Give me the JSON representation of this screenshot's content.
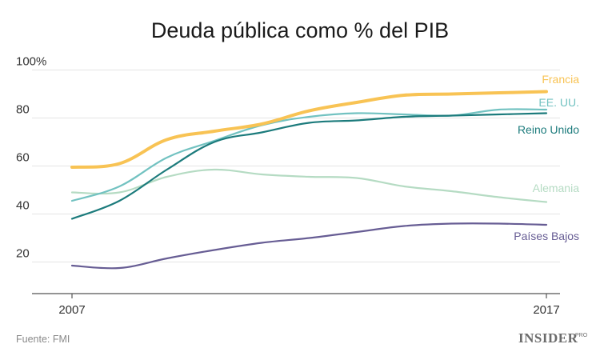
{
  "chart_data": {
    "type": "line",
    "title": "Deuda pública como % del PIB",
    "x": [
      2007,
      2008,
      2009,
      2010,
      2011,
      2012,
      2013,
      2014,
      2015,
      2016,
      2017
    ],
    "x_tick_labels": [
      "2007",
      "2017"
    ],
    "y_tick_labels": [
      "100%",
      "80",
      "60",
      "40",
      "20"
    ],
    "y_ticks": [
      100,
      80,
      60,
      40,
      20
    ],
    "ylim": [
      0,
      100
    ],
    "grid": true,
    "legend": "right (labels at line ends)",
    "series": [
      {
        "name": "Alemania",
        "color": "#b5dbc3",
        "width": 2.2,
        "values": [
          49,
          49,
          55.5,
          58.5,
          56.5,
          55.5,
          55,
          51.5,
          49.5,
          47,
          45
        ]
      },
      {
        "name": "Países Bajos",
        "color": "#675d94",
        "width": 2.2,
        "values": [
          18.5,
          17.5,
          21.5,
          25,
          28,
          30,
          32.5,
          35,
          36,
          36,
          35.5
        ]
      },
      {
        "name": "EE. UU.",
        "color": "#72c2c1",
        "width": 2.2,
        "values": [
          45.5,
          51.5,
          63.5,
          70.5,
          77,
          80.5,
          82,
          81.5,
          81,
          83.5,
          83.5
        ]
      },
      {
        "name": "Reino Unido",
        "color": "#1c7b7c",
        "width": 2.2,
        "values": [
          38,
          45.5,
          58.5,
          70,
          74,
          78,
          79,
          80.5,
          81,
          81.5,
          82
        ]
      },
      {
        "name": "Francia",
        "color": "#f8c354",
        "width": 4,
        "values": [
          59.5,
          61,
          71,
          74.5,
          77.5,
          83,
          86.5,
          89.5,
          90,
          90.5,
          91
        ]
      }
    ]
  },
  "footer": {
    "source": "Fuente: FMI",
    "brand": "INSIDER",
    "brand_suffix": "PRO"
  }
}
